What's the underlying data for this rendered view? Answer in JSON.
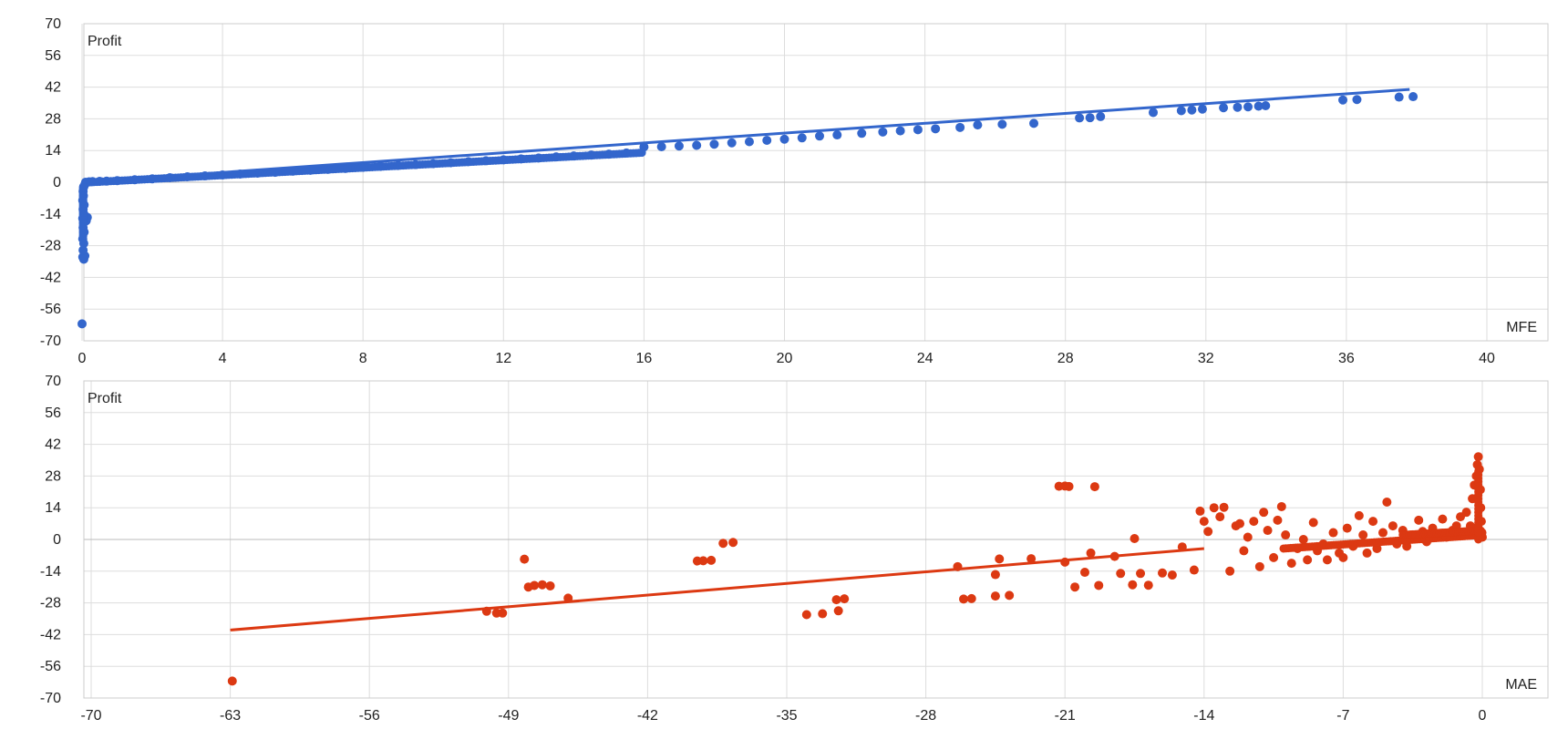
{
  "chart_data": [
    {
      "type": "scatter",
      "ylabel": "Profit",
      "xlabel": "MFE",
      "xlim": [
        0,
        40
      ],
      "ylim": [
        -70,
        70
      ],
      "x_ticks": [
        "0",
        "4",
        "8",
        "12",
        "16",
        "20",
        "24",
        "28",
        "32",
        "36",
        "40"
      ],
      "x_tick_values": [
        0,
        4,
        8,
        12,
        16,
        20,
        24,
        28,
        32,
        36,
        40
      ],
      "y_ticks": [
        "70",
        "56",
        "42",
        "28",
        "14",
        "0",
        "-14",
        "-28",
        "-42",
        "-56",
        "-70"
      ],
      "y_tick_values": [
        70,
        56,
        42,
        28,
        14,
        0,
        -14,
        -28,
        -42,
        -56,
        -70
      ],
      "grid": true,
      "series": [
        {
          "color": "#3366cc",
          "points": [
            [
              0,
              -62.5
            ],
            [
              0.02,
              -33
            ],
            [
              0.05,
              -34
            ],
            [
              0.08,
              -32.5
            ],
            [
              0.03,
              -30
            ],
            [
              0.05,
              -27
            ],
            [
              0.02,
              -25
            ],
            [
              0.06,
              -22
            ],
            [
              0.03,
              -20
            ],
            [
              0.04,
              -18
            ],
            [
              0.02,
              -16
            ],
            [
              0.05,
              -14
            ],
            [
              0.03,
              -12
            ],
            [
              0.06,
              -10
            ],
            [
              0.02,
              -8
            ],
            [
              0.04,
              -6
            ],
            [
              0.03,
              -4
            ],
            [
              0.05,
              -2
            ],
            [
              0.08,
              -1
            ],
            [
              0.1,
              0
            ],
            [
              0.15,
              -15.5
            ],
            [
              0.12,
              -17
            ],
            [
              0.2,
              0.2
            ],
            [
              0.3,
              0.3
            ],
            [
              0.5,
              0.4
            ],
            [
              0.7,
              0.5
            ],
            [
              1.0,
              0.7
            ],
            [
              1.5,
              1.1
            ],
            [
              2.0,
              1.5
            ],
            [
              2.5,
              2.0
            ],
            [
              3.0,
              2.4
            ],
            [
              3.5,
              2.8
            ],
            [
              4.0,
              3.2
            ],
            [
              4.5,
              3.6
            ],
            [
              5.0,
              4.0
            ],
            [
              5.5,
              4.4
            ],
            [
              6.0,
              4.9
            ],
            [
              6.5,
              5.3
            ],
            [
              7.0,
              5.7
            ],
            [
              7.5,
              6.1
            ],
            [
              8.0,
              6.6
            ],
            [
              8.5,
              7.0
            ],
            [
              9.0,
              7.4
            ],
            [
              9.5,
              7.8
            ],
            [
              10.0,
              8.2
            ],
            [
              10.5,
              8.6
            ],
            [
              11.0,
              9.1
            ],
            [
              11.5,
              9.5
            ],
            [
              12.0,
              9.9
            ],
            [
              12.5,
              10.3
            ],
            [
              13.0,
              10.7
            ],
            [
              13.5,
              11.2
            ],
            [
              14.0,
              11.6
            ],
            [
              14.5,
              12.0
            ],
            [
              15.0,
              12.4
            ],
            [
              15.5,
              12.9
            ],
            [
              16.0,
              15.6
            ],
            [
              16.5,
              15.7
            ],
            [
              17.0,
              16.0
            ],
            [
              17.5,
              16.3
            ],
            [
              18.0,
              16.8
            ],
            [
              18.5,
              17.4
            ],
            [
              19.0,
              17.9
            ],
            [
              19.5,
              18.5
            ],
            [
              20.0,
              19.0
            ],
            [
              20.5,
              19.6
            ],
            [
              21.0,
              20.4
            ],
            [
              21.5,
              20.9
            ],
            [
              22.2,
              21.6
            ],
            [
              22.8,
              22.2
            ],
            [
              23.3,
              22.7
            ],
            [
              23.8,
              23.2
            ],
            [
              24.3,
              23.6
            ],
            [
              25.0,
              24.2
            ],
            [
              25.5,
              25.3
            ],
            [
              26.2,
              25.6
            ],
            [
              27.1,
              26.0
            ],
            [
              28.4,
              28.4
            ],
            [
              28.7,
              28.5
            ],
            [
              29.0,
              29.0
            ],
            [
              30.5,
              30.8
            ],
            [
              31.3,
              31.6
            ],
            [
              31.6,
              31.9
            ],
            [
              31.9,
              32.3
            ],
            [
              32.5,
              32.9
            ],
            [
              32.9,
              33.1
            ],
            [
              33.2,
              33.3
            ],
            [
              33.5,
              33.6
            ],
            [
              33.7,
              33.8
            ],
            [
              35.9,
              36.3
            ],
            [
              36.3,
              36.5
            ],
            [
              37.5,
              37.6
            ],
            [
              37.9,
              37.8
            ]
          ]
        }
      ],
      "trendline": [
        [
          0,
          0
        ],
        [
          37.8,
          41
        ]
      ]
    },
    {
      "type": "scatter",
      "ylabel": "Profit",
      "xlabel": "MAE",
      "xlim": [
        -70,
        0
      ],
      "ylim": [
        -70,
        70
      ],
      "x_ticks": [
        "-70",
        "-63",
        "-56",
        "-49",
        "-42",
        "-35",
        "-28",
        "-21",
        "-14",
        "-7",
        "0"
      ],
      "x_tick_values": [
        -70,
        -63,
        -56,
        -49,
        -42,
        -35,
        -28,
        -21,
        -14,
        -7,
        0
      ],
      "y_ticks": [
        "70",
        "56",
        "42",
        "28",
        "14",
        "0",
        "-14",
        "-28",
        "-42",
        "-56",
        "-70"
      ],
      "y_tick_values": [
        70,
        56,
        42,
        28,
        14,
        0,
        -14,
        -28,
        -42,
        -56,
        -70
      ],
      "grid": true,
      "series": [
        {
          "color": "#dc3912",
          "points": [
            [
              -62.9,
              -62.5
            ],
            [
              -50.1,
              -31.7
            ],
            [
              -49.6,
              -32.5
            ],
            [
              -49.3,
              -32.5
            ],
            [
              -48.2,
              -8.7
            ],
            [
              -48.0,
              -21.0
            ],
            [
              -47.7,
              -20.3
            ],
            [
              -47.3,
              -20.0
            ],
            [
              -46.9,
              -20.5
            ],
            [
              -46.0,
              -25.9
            ],
            [
              -39.5,
              -9.5
            ],
            [
              -39.2,
              -9.4
            ],
            [
              -38.8,
              -9.2
            ],
            [
              -38.2,
              -1.7
            ],
            [
              -37.7,
              -1.3
            ],
            [
              -34.0,
              -33.2
            ],
            [
              -33.2,
              -32.8
            ],
            [
              -32.5,
              -26.6
            ],
            [
              -32.1,
              -26.2
            ],
            [
              -32.4,
              -31.5
            ],
            [
              -26.4,
              -12.0
            ],
            [
              -26.1,
              -26.3
            ],
            [
              -25.7,
              -26.1
            ],
            [
              -24.5,
              -25.0
            ],
            [
              -24.5,
              -15.5
            ],
            [
              -24.3,
              -8.6
            ],
            [
              -23.8,
              -24.7
            ],
            [
              -22.7,
              -8.5
            ],
            [
              -21.3,
              23.5
            ],
            [
              -21.0,
              23.6
            ],
            [
              -20.8,
              23.4
            ],
            [
              -19.5,
              23.3
            ],
            [
              -21.0,
              -10.0
            ],
            [
              -20.5,
              -21.0
            ],
            [
              -20.0,
              -14.5
            ],
            [
              -19.7,
              -6.0
            ],
            [
              -19.3,
              -20.3
            ],
            [
              -18.5,
              -7.5
            ],
            [
              -18.2,
              -15.0
            ],
            [
              -17.6,
              -20.0
            ],
            [
              -17.5,
              0.4
            ],
            [
              -17.2,
              -15.0
            ],
            [
              -16.8,
              -20.2
            ],
            [
              -16.1,
              -14.8
            ],
            [
              -15.6,
              -15.7
            ],
            [
              -15.1,
              -3.3
            ],
            [
              -14.5,
              -13.5
            ],
            [
              -14.2,
              12.5
            ],
            [
              -14.0,
              8.0
            ],
            [
              -13.8,
              3.5
            ],
            [
              -13.5,
              14.0
            ],
            [
              -13.2,
              10.0
            ],
            [
              -13.0,
              14.2
            ],
            [
              -12.7,
              -14.0
            ],
            [
              -12.4,
              6.0
            ],
            [
              -12.2,
              7.0
            ],
            [
              -12.0,
              -5.0
            ],
            [
              -11.8,
              1.0
            ],
            [
              -11.5,
              8.0
            ],
            [
              -11.2,
              -12.0
            ],
            [
              -11.0,
              12.0
            ],
            [
              -10.8,
              4.0
            ],
            [
              -10.5,
              -8.0
            ],
            [
              -10.3,
              8.5
            ],
            [
              -10.1,
              14.5
            ],
            [
              -9.9,
              2.0
            ],
            [
              -9.6,
              -10.5
            ],
            [
              -9.3,
              -4.0
            ],
            [
              -9.0,
              0.0
            ],
            [
              -8.8,
              -9.0
            ],
            [
              -8.5,
              7.5
            ],
            [
              -8.3,
              -5.0
            ],
            [
              -8.0,
              -2.0
            ],
            [
              -7.8,
              -9.0
            ],
            [
              -7.5,
              3.0
            ],
            [
              -7.2,
              -6.0
            ],
            [
              -7.0,
              -8.0
            ],
            [
              -6.8,
              5.0
            ],
            [
              -6.5,
              -3.0
            ],
            [
              -6.2,
              10.5
            ],
            [
              -6.0,
              2.0
            ],
            [
              -5.8,
              -6.0
            ],
            [
              -5.5,
              8.0
            ],
            [
              -5.3,
              -4.0
            ],
            [
              -5.0,
              3.0
            ],
            [
              -4.8,
              16.5
            ],
            [
              -4.5,
              6.0
            ],
            [
              -4.3,
              -2.0
            ],
            [
              -4.0,
              4.0
            ],
            [
              -3.8,
              -3.0
            ],
            [
              -3.5,
              1.5
            ],
            [
              -3.2,
              8.5
            ],
            [
              -3.0,
              3.5
            ],
            [
              -2.8,
              -1.0
            ],
            [
              -2.5,
              5.0
            ],
            [
              -2.3,
              2.0
            ],
            [
              -2.0,
              9.0
            ],
            [
              -1.8,
              1.0
            ],
            [
              -1.5,
              4.0
            ],
            [
              -1.3,
              6.0
            ],
            [
              -1.1,
              10.0
            ],
            [
              -1.0,
              3.0
            ],
            [
              -0.8,
              12.0
            ],
            [
              -0.6,
              6.0
            ],
            [
              -0.5,
              18.0
            ],
            [
              -0.4,
              24.0
            ],
            [
              -0.3,
              28.0
            ],
            [
              -0.25,
              33.0
            ],
            [
              -0.2,
              36.5
            ],
            [
              -0.15,
              31.0
            ],
            [
              -0.1,
              22.0
            ],
            [
              -0.08,
              14.0
            ],
            [
              -0.05,
              8.0
            ],
            [
              -0.02,
              3.0
            ],
            [
              0,
              1.0
            ]
          ]
        }
      ],
      "trendline": [
        [
          -63,
          -40
        ],
        [
          -14,
          -4
        ]
      ]
    }
  ]
}
